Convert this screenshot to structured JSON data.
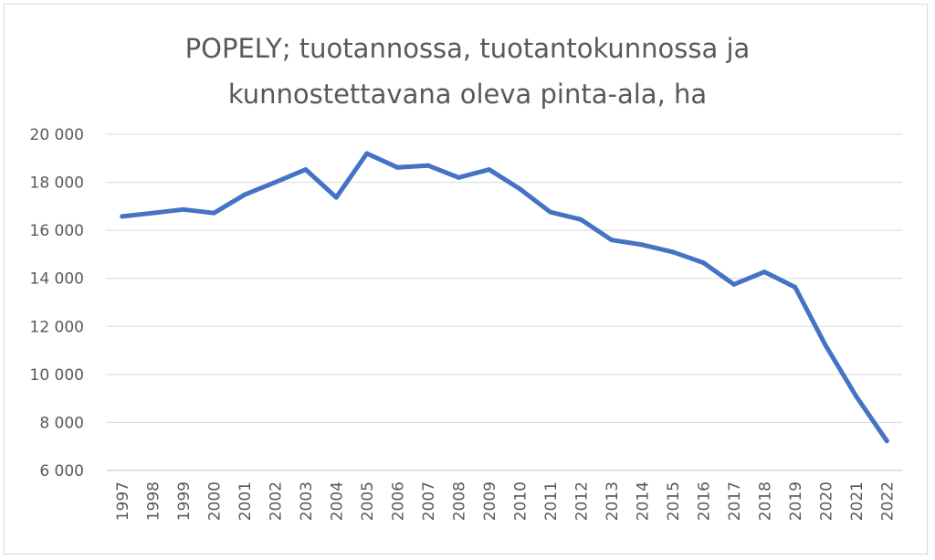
{
  "chart_data": {
    "type": "line",
    "title_lines": [
      "POPELY; tuotannossa, tuotantokunnossa ja",
      "kunnostettavana oleva pinta-ala, ha"
    ],
    "xlabel": "",
    "ylabel": "",
    "ylim": [
      6000,
      20000
    ],
    "yticks": [
      6000,
      8000,
      10000,
      12000,
      14000,
      16000,
      18000,
      20000
    ],
    "ytick_labels": [
      "6 000",
      "8 000",
      "10 000",
      "12 000",
      "14 000",
      "16 000",
      "18 000",
      "20 000"
    ],
    "categories": [
      "1997",
      "1998",
      "1999",
      "2000",
      "2001",
      "2002",
      "2003",
      "2004",
      "2005",
      "2006",
      "2007",
      "2008",
      "2009",
      "2010",
      "2011",
      "2012",
      "2013",
      "2014",
      "2015",
      "2016",
      "2017",
      "2018",
      "2019",
      "2020",
      "2021",
      "2022"
    ],
    "series": [
      {
        "color": "#4472c4",
        "values": [
          16580,
          16720,
          16870,
          16720,
          17480,
          18000,
          18530,
          17370,
          19200,
          18620,
          18700,
          18200,
          18530,
          17730,
          16760,
          16450,
          15600,
          15400,
          15100,
          14650,
          13750,
          14270,
          13630,
          11200,
          9080,
          7230
        ]
      }
    ],
    "grid": true,
    "legend": "none"
  }
}
